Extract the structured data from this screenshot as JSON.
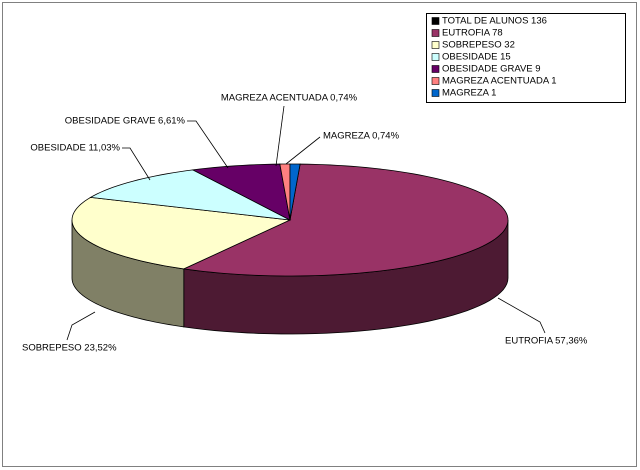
{
  "chart_data": {
    "type": "pie3d",
    "values": [
      57.36,
      23.52,
      11.03,
      6.61,
      0.74,
      0.74
    ],
    "value_labels": [
      "EUTROFIA 57,36%",
      "SOBREPESO 23,52%",
      "OBESIDADE 11,03%",
      "OBESIDADE GRAVE 6,61%",
      "MAGREZA ACENTUADA 0,74%",
      "MAGREZA 0,74%"
    ],
    "colors": [
      "#993366",
      "#ffffcc",
      "#ccffff",
      "#660066",
      "#ff8080",
      "#0066cc"
    ],
    "legend_position": "top-right",
    "legend": [
      {
        "label": "TOTAL DE ALUNOS 136",
        "color": "#000000"
      },
      {
        "label": "EUTROFIA 78",
        "color": "#993366"
      },
      {
        "label": "SOBREPESO 32",
        "color": "#ffffcc"
      },
      {
        "label": "OBESIDADE 15",
        "color": "#ccffff"
      },
      {
        "label": "OBESIDADE GRAVE 9",
        "color": "#660066"
      },
      {
        "label": "MAGREZA ACENTUADA 1",
        "color": "#ff8080"
      },
      {
        "label": "MAGREZA 1",
        "color": "#0066cc"
      }
    ]
  }
}
